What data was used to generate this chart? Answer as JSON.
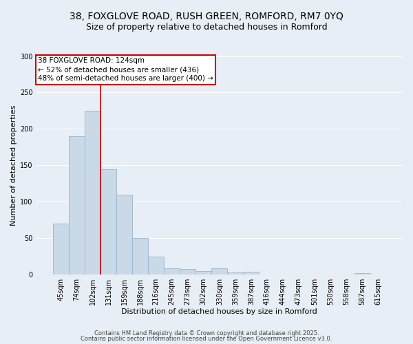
{
  "title_line1": "38, FOXGLOVE ROAD, RUSH GREEN, ROMFORD, RM7 0YQ",
  "title_line2": "Size of property relative to detached houses in Romford",
  "xlabel": "Distribution of detached houses by size in Romford",
  "ylabel": "Number of detached properties",
  "categories": [
    "45sqm",
    "74sqm",
    "102sqm",
    "131sqm",
    "159sqm",
    "188sqm",
    "216sqm",
    "245sqm",
    "273sqm",
    "302sqm",
    "330sqm",
    "359sqm",
    "387sqm",
    "416sqm",
    "444sqm",
    "473sqm",
    "501sqm",
    "530sqm",
    "558sqm",
    "587sqm",
    "615sqm"
  ],
  "values": [
    70,
    190,
    225,
    145,
    110,
    50,
    25,
    9,
    8,
    5,
    9,
    3,
    4,
    0,
    0,
    0,
    0,
    0,
    0,
    2,
    0
  ],
  "bar_color": "#c9d9e8",
  "bar_edge_color": "#9ab4cc",
  "vline_x": 2.5,
  "vline_color": "#cc0000",
  "annotation_text": "38 FOXGLOVE ROAD: 124sqm\n← 52% of detached houses are smaller (436)\n48% of semi-detached houses are larger (400) →",
  "annotation_box_color": "#ffffff",
  "annotation_box_edge": "#cc0000",
  "ylim": [
    0,
    300
  ],
  "yticks": [
    0,
    50,
    100,
    150,
    200,
    250,
    300
  ],
  "background_color": "#e8eef5",
  "grid_color": "#ffffff",
  "footer_line1": "Contains HM Land Registry data © Crown copyright and database right 2025.",
  "footer_line2": "Contains public sector information licensed under the Open Government Licence v3.0.",
  "title_fontsize": 10,
  "subtitle_fontsize": 9,
  "axis_fontsize": 8,
  "tick_fontsize": 7,
  "annotation_fontsize": 7.5,
  "footer_fontsize": 6
}
